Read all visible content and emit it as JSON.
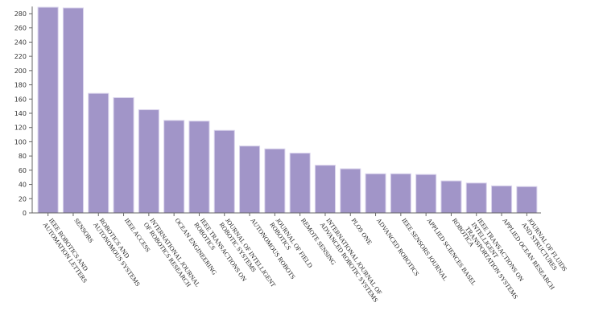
{
  "chart_data": {
    "type": "bar",
    "title": "",
    "xlabel": "",
    "ylabel": "",
    "ylim": [
      0,
      290
    ],
    "yticks": [
      0,
      20,
      40,
      60,
      80,
      100,
      120,
      140,
      160,
      180,
      200,
      220,
      240,
      260,
      280
    ],
    "grid": false,
    "bar_color": "#a195c8",
    "categories": [
      [
        "IEEE ROBOTICS AND",
        "AUTOMATION LETTERS"
      ],
      [
        "SENSORS"
      ],
      [
        "ROBOTICS AND",
        "AUTONOMOUS SYSTEMS"
      ],
      [
        "IEEE ACCESS"
      ],
      [
        "INTERNATIONAL JOURNAL",
        "OF ROBOTICS RESEARCH"
      ],
      [
        "OCEAN ENGINEERING"
      ],
      [
        "IEEE TRANSACTIONS ON",
        "ROBOTICS"
      ],
      [
        "JOURNAL OF INTELLIGENT",
        "ROBOTIC SYSTEMS"
      ],
      [
        "AUTONOMOUS ROBOTS"
      ],
      [
        "JOURNAL OF FIELD",
        "ROBOTICS"
      ],
      [
        "REMOTE SENSING"
      ],
      [
        "INTERNATIONAL JOURNAL OF",
        "ADVANCED ROBOTIC SYSTEMS"
      ],
      [
        "PLOS ONE"
      ],
      [
        "ADVANCED ROBOTICS"
      ],
      [
        "IEEE SENSORS JOURNAL"
      ],
      [
        "APPLIED SCIENCES BASEL"
      ],
      [
        "ROBOTICA"
      ],
      [
        "IEEE TRANSACTIONS ON",
        "INTELLIGENT",
        "TRANSPORTATION SYSTEMS"
      ],
      [
        "APPLIED OCEAN RESEARCH"
      ],
      [
        "JOURNAL OF FLUIDS",
        "AND STRUCTURES"
      ]
    ],
    "values": [
      289,
      288,
      168,
      162,
      145,
      130,
      129,
      116,
      94,
      90,
      84,
      67,
      62,
      55,
      55,
      54,
      45,
      42,
      38,
      37
    ]
  }
}
